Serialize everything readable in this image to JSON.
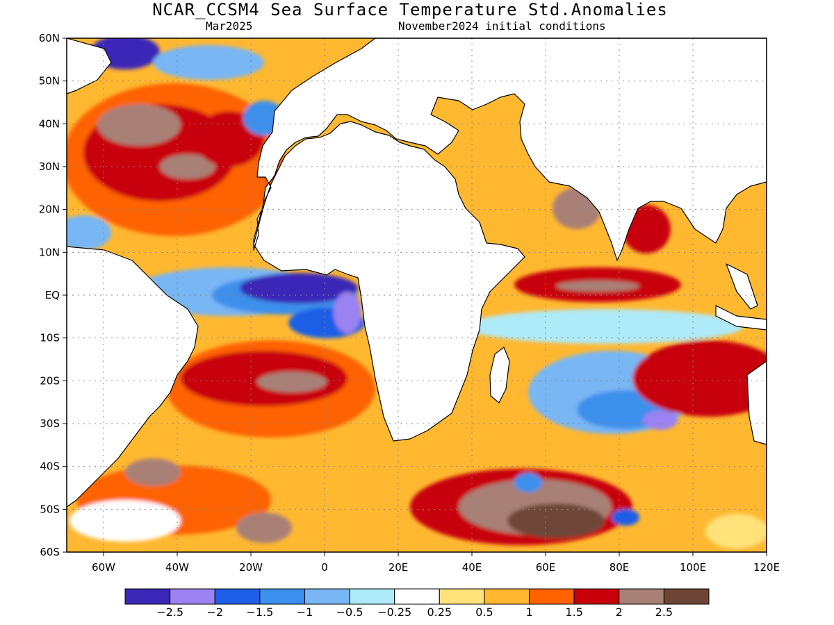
{
  "header": {
    "title": "NCAR_CCSM4 Sea Surface Temperature Std.Anomalies",
    "target_month": "Mar2025",
    "init": "November2024 initial conditions"
  },
  "map": {
    "lon_range": [
      -70,
      120
    ],
    "lat_range": [
      -60,
      60
    ],
    "lat_ticks": [
      {
        "v": 60,
        "label": "60N"
      },
      {
        "v": 50,
        "label": "50N"
      },
      {
        "v": 40,
        "label": "40N"
      },
      {
        "v": 30,
        "label": "30N"
      },
      {
        "v": 20,
        "label": "20N"
      },
      {
        "v": 10,
        "label": "10N"
      },
      {
        "v": 0,
        "label": "EQ"
      },
      {
        "v": -10,
        "label": "10S"
      },
      {
        "v": -20,
        "label": "20S"
      },
      {
        "v": -30,
        "label": "30S"
      },
      {
        "v": -40,
        "label": "40S"
      },
      {
        "v": -50,
        "label": "50S"
      },
      {
        "v": -60,
        "label": "60S"
      }
    ],
    "lon_ticks": [
      {
        "v": -60,
        "label": "60W"
      },
      {
        "v": -40,
        "label": "40W"
      },
      {
        "v": -20,
        "label": "20W"
      },
      {
        "v": 0,
        "label": "0"
      },
      {
        "v": 20,
        "label": "20E"
      },
      {
        "v": 40,
        "label": "40E"
      },
      {
        "v": 60,
        "label": "60E"
      },
      {
        "v": 80,
        "label": "80E"
      },
      {
        "v": 100,
        "label": "100E"
      },
      {
        "v": 120,
        "label": "120E"
      }
    ],
    "grid": "dotted",
    "land_color": "#ffffff",
    "coast_color": "#000000"
  },
  "colorbar": {
    "colors": [
      "#3b28b8",
      "#9a82f2",
      "#1e5ee6",
      "#3c8fec",
      "#78b6f4",
      "#aeeaf8",
      "#ffffff",
      "#ffe27a",
      "#ffb830",
      "#ff6200",
      "#c8000a",
      "#a98076",
      "#6e4638"
    ],
    "labels": [
      "−2.5",
      "−2",
      "−1.5",
      "−1",
      "−0.5",
      "−0.25",
      "0.25",
      "0.5",
      "1",
      "1.5",
      "2",
      "2.5"
    ]
  }
}
